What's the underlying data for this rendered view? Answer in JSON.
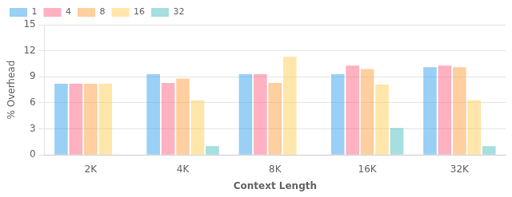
{
  "chart_data": {
    "type": "bar",
    "categories": [
      "2K",
      "4K",
      "8K",
      "16K",
      "32K"
    ],
    "series": [
      {
        "name": "1",
        "values": [
          8.2,
          9.3,
          9.3,
          9.3,
          10.1
        ]
      },
      {
        "name": "4",
        "values": [
          8.2,
          8.3,
          9.3,
          10.3,
          10.3
        ]
      },
      {
        "name": "8",
        "values": [
          8.2,
          8.8,
          8.3,
          9.9,
          10.1
        ]
      },
      {
        "name": "16",
        "values": [
          8.2,
          6.3,
          11.3,
          8.1,
          6.3
        ]
      },
      {
        "name": "32",
        "values": [
          0.0,
          1.0,
          0.0,
          3.1,
          1.0
        ]
      }
    ],
    "xlabel": "Context Length",
    "ylabel": "% Overhead",
    "ylim": [
      0,
      15
    ],
    "yticks": [
      0,
      3,
      6,
      9,
      12,
      15
    ],
    "grid": true,
    "legend": "upper left"
  }
}
